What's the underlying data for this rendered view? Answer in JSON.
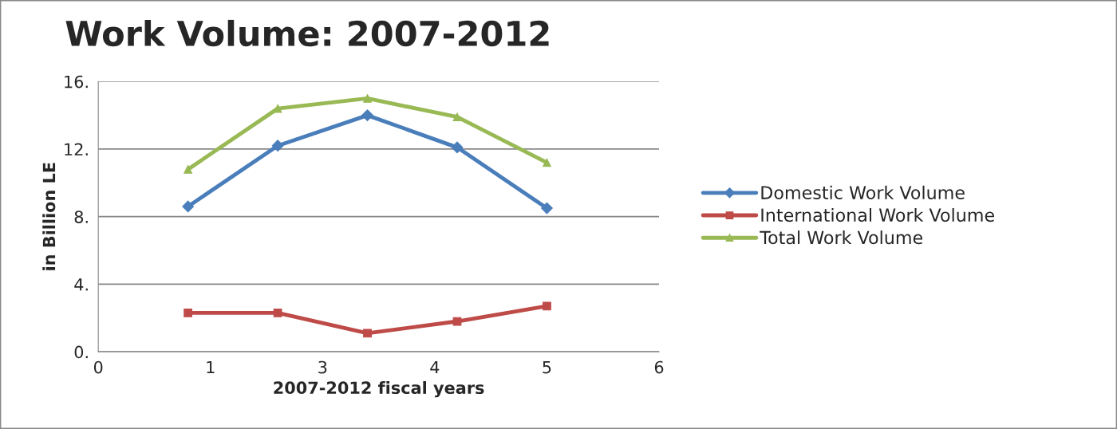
{
  "chart_data": {
    "type": "line",
    "title": "Work Volume: 2007-2012",
    "xlabel": "2007-2012 fiscal years",
    "ylabel": "in Billion LE",
    "x": [
      1,
      2,
      3,
      4,
      5
    ],
    "series": [
      {
        "name": "Domestic Work Volume",
        "color": "#4a7ebb",
        "marker": "diamond",
        "values": [
          8.6,
          12.2,
          14.0,
          12.1,
          8.5
        ]
      },
      {
        "name": "International Work Volume",
        "color": "#be4b48",
        "marker": "square",
        "values": [
          2.3,
          2.3,
          1.1,
          1.8,
          2.7
        ]
      },
      {
        "name": "Total Work Volume",
        "color": "#98b954",
        "marker": "triangle",
        "values": [
          10.8,
          14.4,
          15.0,
          13.9,
          11.2
        ]
      }
    ],
    "xlim": [
      0,
      6.25
    ],
    "xticks": [
      0,
      {
        "value": 1.25,
        "label": "1"
      },
      {
        "value": 2.5,
        "label": "3"
      },
      {
        "value": 3.75,
        "label": "4"
      },
      5,
      {
        "value": 6.25,
        "label": "6"
      }
    ],
    "ylim": [
      0,
      16
    ],
    "yticks": [
      {
        "value": 0,
        "label": "0."
      },
      {
        "value": 4,
        "label": "4."
      },
      {
        "value": 8,
        "label": "8."
      },
      {
        "value": 12,
        "label": "12."
      },
      {
        "value": 16,
        "label": "16."
      }
    ],
    "grid": "y",
    "legend": "right",
    "line_style": "solid"
  }
}
